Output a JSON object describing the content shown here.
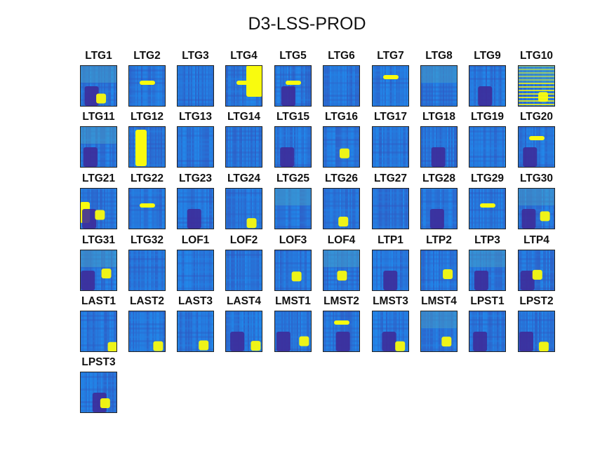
{
  "title": "D3-LSS-PROD",
  "colors": {
    "colormap": "parula",
    "low": "#3d2c9a",
    "mid": "#1f8ff0",
    "high": "#f9fb0e",
    "frame": "#222222"
  },
  "chart_data": {
    "type": "heatmap",
    "title": "D3-LSS-PROD",
    "layout": "grid of spectrogram-like heatmaps, 10 columns, 6 rows",
    "grid": false,
    "axes_ticks": "none",
    "panels": [
      {
        "label": "LTG1",
        "pattern": "dark blue field, faint yellow-green blob lower right"
      },
      {
        "label": "LTG2",
        "pattern": "horizontal yellow bar center"
      },
      {
        "label": "LTG3",
        "pattern": "uniform blue texture"
      },
      {
        "label": "LTG4",
        "pattern": "large yellow region right, yellow bar center"
      },
      {
        "label": "LTG5",
        "pattern": "horizontal yellow bar center, darker left"
      },
      {
        "label": "LTG6",
        "pattern": "uniform blue texture"
      },
      {
        "label": "LTG7",
        "pattern": "horizontal yellow bar upper center"
      },
      {
        "label": "LTG8",
        "pattern": "vertical streaks, faint green"
      },
      {
        "label": "LTG9",
        "pattern": "dark horizontal bands"
      },
      {
        "label": "LTG10",
        "pattern": "yellow-green horizontal stripes, high overall"
      },
      {
        "label": "LTG11",
        "pattern": "green lower-left, dark right"
      },
      {
        "label": "LTG12",
        "pattern": "large yellow column left-center"
      },
      {
        "label": "LTG13",
        "pattern": "uniform blue with vertical streaks"
      },
      {
        "label": "LTG14",
        "pattern": "uniform blue texture"
      },
      {
        "label": "LTG15",
        "pattern": "dark blue lower half"
      },
      {
        "label": "LTG16",
        "pattern": "vertical streaks, yellow top-right"
      },
      {
        "label": "LTG17",
        "pattern": "uniform blue texture"
      },
      {
        "label": "LTG18",
        "pattern": "dark grid-like texture"
      },
      {
        "label": "LTG19",
        "pattern": "blue with vertical streaks"
      },
      {
        "label": "LTG20",
        "pattern": "yellow bar upper right, dark left"
      },
      {
        "label": "LTG21",
        "pattern": "yellow blob left, dark right"
      },
      {
        "label": "LTG22",
        "pattern": "horizontal yellow bar center"
      },
      {
        "label": "LTG23",
        "pattern": "dark blue with vertical streaks"
      },
      {
        "label": "LTG24",
        "pattern": "blue, faint yellow bottom-right"
      },
      {
        "label": "LTG25",
        "pattern": "vertical streaks, green"
      },
      {
        "label": "LTG26",
        "pattern": "vertical streaks, yellow bottom"
      },
      {
        "label": "LTG27",
        "pattern": "uniform blue texture"
      },
      {
        "label": "LTG28",
        "pattern": "blue texture, darker bottom"
      },
      {
        "label": "LTG29",
        "pattern": "horizontal yellow bar center"
      },
      {
        "label": "LTG30",
        "pattern": "green top, yellow bottom-right, dark left"
      },
      {
        "label": "LTG31",
        "pattern": "green-yellow left, dark right"
      },
      {
        "label": "LTG32",
        "pattern": "uniform blue texture"
      },
      {
        "label": "LOF1",
        "pattern": "uniform blue, lighter center"
      },
      {
        "label": "LOF2",
        "pattern": "uniform blue texture"
      },
      {
        "label": "LOF3",
        "pattern": "yellow blob center-right"
      },
      {
        "label": "LOF4",
        "pattern": "yellow blobs right, green"
      },
      {
        "label": "LTP1",
        "pattern": "dark bottom, vertical streaks"
      },
      {
        "label": "LTP2",
        "pattern": "yellow column center, streaks"
      },
      {
        "label": "LTP3",
        "pattern": "green, dark lower region"
      },
      {
        "label": "LTP4",
        "pattern": "yellow regions left and right, dark center"
      },
      {
        "label": "LAST1",
        "pattern": "yellow blocks lower right, streaks"
      },
      {
        "label": "LAST2",
        "pattern": "vertical streaks, yellow bottom-right"
      },
      {
        "label": "LAST3",
        "pattern": "vertical streaks, yellow bottom"
      },
      {
        "label": "LAST4",
        "pattern": "dark columns, yellow gaps"
      },
      {
        "label": "LMST1",
        "pattern": "dark columns, yellow bottom"
      },
      {
        "label": "LMST2",
        "pattern": "yellow bar upper center, dark bottom"
      },
      {
        "label": "LMST3",
        "pattern": "yellow lower left, dark right"
      },
      {
        "label": "LMST4",
        "pattern": "green-yellow mottled"
      },
      {
        "label": "LPST1",
        "pattern": "dark lower center"
      },
      {
        "label": "LPST2",
        "pattern": "yellow bottom corners, dark bottom"
      },
      {
        "label": "LPST3",
        "pattern": "yellow blob center, dark sides"
      }
    ]
  }
}
